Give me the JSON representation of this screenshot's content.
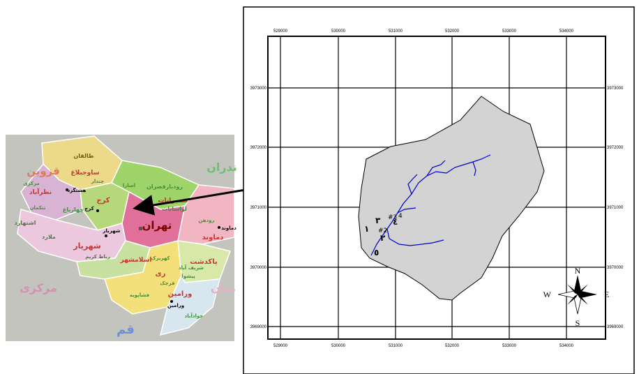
{
  "left_map": {
    "provinces": [
      {
        "id": "qazvin",
        "label": "قزوین",
        "color": "#e07a5f"
      },
      {
        "id": "mazandaran",
        "label": "ندران",
        "color": "#6fbf73"
      },
      {
        "id": "markazi",
        "label": "مرکزی",
        "color": "#d58fb3"
      },
      {
        "id": "semnan",
        "label": "منان",
        "color": "#e8b0c8"
      },
      {
        "id": "qom",
        "label": "قم",
        "color": "#6b8fd6"
      }
    ],
    "counties": [
      {
        "id": "taleqan",
        "label": "طالقان",
        "color": "#7a5a00"
      },
      {
        "id": "savojbolagh",
        "label": "ساوجبلاغ",
        "color": "#cc3333"
      },
      {
        "id": "nazarabad",
        "label": "نظرآباد",
        "color": "#cc3333"
      },
      {
        "id": "karaj",
        "label": "کرج",
        "color": "#cc3333"
      },
      {
        "id": "tehran",
        "label": "تهران",
        "color": "#7a0000"
      },
      {
        "id": "shemiranat",
        "label": "شمیرانات",
        "color": "#cc3333"
      },
      {
        "id": "damavand",
        "label": "دماوند",
        "color": "#cc3333"
      },
      {
        "id": "shahriar",
        "label": "شهریار",
        "color": "#cc3333"
      },
      {
        "id": "eslamshahr",
        "label": "اسلامشهر",
        "color": "#cc3333"
      },
      {
        "id": "ray",
        "label": "ری",
        "color": "#cc3333"
      },
      {
        "id": "pakdasht",
        "label": "پاکدشت",
        "color": "#cc3333"
      },
      {
        "id": "varamin",
        "label": "ورامین",
        "color": "#cc3333"
      },
      {
        "id": "eshtehard",
        "label": "اشتهارد",
        "color": "#4a7a3a"
      },
      {
        "id": "mallard",
        "label": "ملارد",
        "color": "#4a7a3a"
      },
      {
        "id": "robat",
        "label": "رباط کریم",
        "color": "#4a7a3a"
      }
    ],
    "districts": [
      {
        "id": "markazi1",
        "label": "مرکزی"
      },
      {
        "id": "chandar",
        "label": "چندار"
      },
      {
        "id": "asara",
        "label": "اسارا"
      },
      {
        "id": "roodbar",
        "label": "رودبارقصران"
      },
      {
        "id": "lavasanat",
        "label": "لواسانات"
      },
      {
        "id": "roodehen",
        "label": "رودهن"
      },
      {
        "id": "tankaman",
        "label": "تنکمان"
      },
      {
        "id": "chaharbagh",
        "label": "چهارباغ"
      },
      {
        "id": "fashapooyeh",
        "label": "فشاپویه"
      },
      {
        "id": "kahrizak",
        "label": "کهریزک"
      },
      {
        "id": "qarchak",
        "label": "قرچک"
      },
      {
        "id": "pishva",
        "label": "پیشوا"
      },
      {
        "id": "javadabad",
        "label": "جوادآباد"
      },
      {
        "id": "sharifabad",
        "label": "شریف آباد"
      }
    ],
    "cities": [
      {
        "id": "hashtgerd",
        "label": "هشتگرد"
      },
      {
        "id": "karaj_city",
        "label": "کرج"
      },
      {
        "id": "shahriar_city",
        "label": "شهریار"
      },
      {
        "id": "damavand_city",
        "label": "دماوند"
      },
      {
        "id": "varamin_city",
        "label": "ورامین"
      }
    ],
    "arrow_label": ""
  },
  "right_map": {
    "x_ticks": [
      "529000",
      "530000",
      "531000",
      "532000",
      "533000",
      "534000"
    ],
    "y_ticks": [
      "3973000",
      "3972000",
      "3971000",
      "3970000",
      "3969000"
    ],
    "sites": [
      {
        "id": "s1",
        "label": "١"
      },
      {
        "id": "s2",
        "label": "٢"
      },
      {
        "id": "s3",
        "label": "٣"
      },
      {
        "id": "s4",
        "label": "٤"
      },
      {
        "id": "s5",
        "label": "٥"
      }
    ],
    "site_markers": [
      {
        "id": "m2",
        "label": "#2"
      },
      {
        "id": "m3",
        "label": "#3"
      },
      {
        "id": "m4",
        "label": "4"
      }
    ],
    "compass": {
      "n": "N",
      "s": "S",
      "e": "E",
      "w": "W"
    },
    "watershed_color": "#d3d3d3",
    "stream_color": "#0000cc"
  }
}
